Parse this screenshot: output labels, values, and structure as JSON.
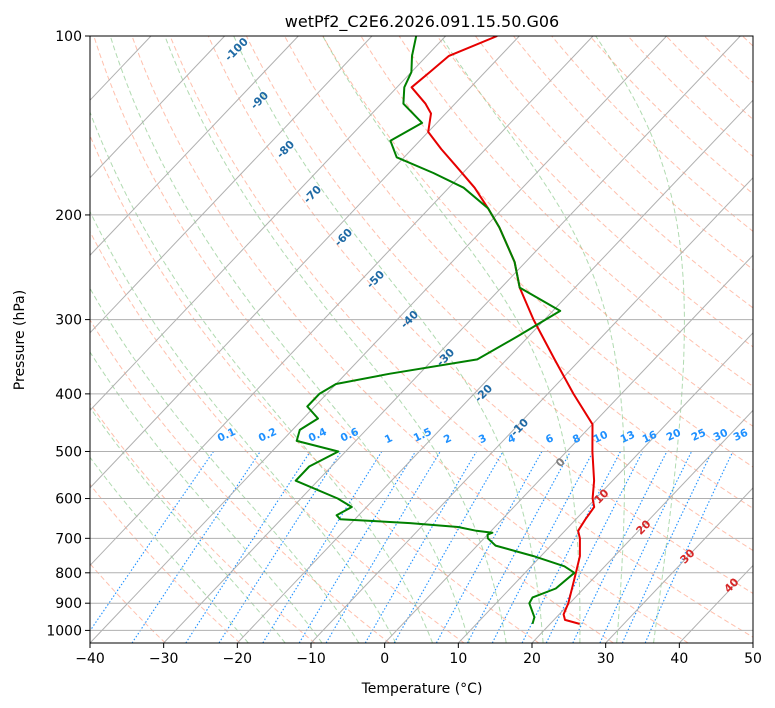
{
  "chart_data": {
    "type": "skewt",
    "title": "wetPf2_C2E6.2026.091.15.50.G06",
    "xlabel": "Temperature (°C)",
    "ylabel": "Pressure (hPa)",
    "xlim": [
      -40,
      50
    ],
    "ylim": [
      1050,
      100
    ],
    "x_ticks": [
      -40,
      -30,
      -20,
      -10,
      0,
      10,
      20,
      30,
      40,
      50
    ],
    "y_ticks": [
      1000,
      900,
      800,
      700,
      600,
      500,
      400,
      300,
      200,
      100
    ],
    "x_tick_labels": [
      "−40",
      "−30",
      "−20",
      "−10",
      "0",
      "10",
      "20",
      "30",
      "40",
      "50"
    ],
    "y_tick_labels": [
      "1000",
      "900",
      "800",
      "700",
      "600",
      "500",
      "400",
      "300",
      "200",
      "100"
    ],
    "series": [
      {
        "name": "temperature",
        "color": "#e60000",
        "points": [
          [
            975,
            24.0
          ],
          [
            960,
            21.5
          ],
          [
            940,
            20.6
          ],
          [
            900,
            19.8
          ],
          [
            850,
            18.4
          ],
          [
            800,
            16.9
          ],
          [
            750,
            15.3
          ],
          [
            700,
            13.0
          ],
          [
            680,
            11.8
          ],
          [
            650,
            11.3
          ],
          [
            620,
            10.9
          ],
          [
            600,
            9.6
          ],
          [
            560,
            7.5
          ],
          [
            500,
            3.5
          ],
          [
            450,
            0.0
          ],
          [
            400,
            -6.5
          ],
          [
            350,
            -13.5
          ],
          [
            300,
            -21.5
          ],
          [
            265,
            -27.5
          ],
          [
            240,
            -31.5
          ],
          [
            210,
            -38.0
          ],
          [
            195,
            -42.0
          ],
          [
            180,
            -46.5
          ],
          [
            165,
            -52.0
          ],
          [
            155,
            -56.0
          ],
          [
            145,
            -60.0
          ],
          [
            135,
            -62.0
          ],
          [
            130,
            -64.0
          ],
          [
            122,
            -68.0
          ],
          [
            115,
            -67.5
          ],
          [
            108,
            -67.0
          ],
          [
            100,
            -63.0
          ]
        ]
      },
      {
        "name": "dewpoint",
        "color": "#008000",
        "points": [
          [
            975,
            17.6
          ],
          [
            950,
            17.0
          ],
          [
            900,
            14.5
          ],
          [
            880,
            14.2
          ],
          [
            850,
            16.2
          ],
          [
            800,
            16.7
          ],
          [
            780,
            14.5
          ],
          [
            750,
            9.0
          ],
          [
            720,
            2.5
          ],
          [
            700,
            0.5
          ],
          [
            690,
            0.0
          ],
          [
            685,
            0.4
          ],
          [
            680,
            -2.0
          ],
          [
            670,
            -5.0
          ],
          [
            660,
            -12.0
          ],
          [
            650,
            -22.0
          ],
          [
            640,
            -23.0
          ],
          [
            620,
            -22.0
          ],
          [
            600,
            -25.0
          ],
          [
            560,
            -33.0
          ],
          [
            530,
            -33.0
          ],
          [
            500,
            -31.0
          ],
          [
            480,
            -38.0
          ],
          [
            460,
            -39.0
          ],
          [
            440,
            -38.0
          ],
          [
            420,
            -41.0
          ],
          [
            400,
            -41.0
          ],
          [
            385,
            -40.0
          ],
          [
            370,
            -34.0
          ],
          [
            350,
            -24.0
          ],
          [
            320,
            -21.5
          ],
          [
            290,
            -19.0
          ],
          [
            265,
            -27.5
          ],
          [
            240,
            -31.5
          ],
          [
            210,
            -38.0
          ],
          [
            195,
            -42.0
          ],
          [
            180,
            -48.0
          ],
          [
            170,
            -54.0
          ],
          [
            160,
            -61.0
          ],
          [
            150,
            -64.0
          ],
          [
            140,
            -62.0
          ],
          [
            130,
            -67.0
          ],
          [
            122,
            -69.0
          ],
          [
            115,
            -70.0
          ],
          [
            108,
            -72.0
          ],
          [
            100,
            -74.0
          ]
        ]
      }
    ],
    "isotherm_labels": [
      "-100",
      "-90",
      "-80",
      "-70",
      "-60",
      "-50",
      "-40",
      "-30",
      "-20",
      "-10",
      "0",
      "10",
      "20",
      "30",
      "40"
    ],
    "mixing_ratio_labels": [
      "0.1",
      "0.2",
      "0.4",
      "0.6",
      "1",
      "1.5",
      "2",
      "3",
      "4",
      "6",
      "8",
      "10",
      "13",
      "16",
      "20",
      "25",
      "30",
      "36"
    ],
    "mixing_ratio_values": [
      0.1,
      0.2,
      0.4,
      0.6,
      1,
      1.5,
      2,
      3,
      4,
      6,
      8,
      10,
      13,
      16,
      20,
      25,
      30,
      36
    ],
    "dry_adiabat_thetas": [
      240,
      250,
      260,
      270,
      280,
      290,
      300,
      310,
      320,
      330,
      340,
      350,
      360,
      370,
      380,
      390,
      400,
      410,
      420,
      430,
      440,
      450,
      460,
      470,
      480,
      490,
      500
    ],
    "moist_adiabat_starts": [
      -20,
      -15,
      -10,
      -5,
      0,
      5,
      10,
      15,
      20,
      25,
      30,
      35
    ],
    "colors": {
      "isotherm": "#b0b0b0",
      "isotherm_label_cold": "#1f6aa5",
      "isotherm_label_zero": "#808080",
      "isotherm_label_warm": "#d62728",
      "mixing_ratio": "#1e90ff",
      "dry_adiabat": "#ff8c69",
      "moist_adiabat": "#8fca8f",
      "grid": "#b0b0b0"
    }
  }
}
